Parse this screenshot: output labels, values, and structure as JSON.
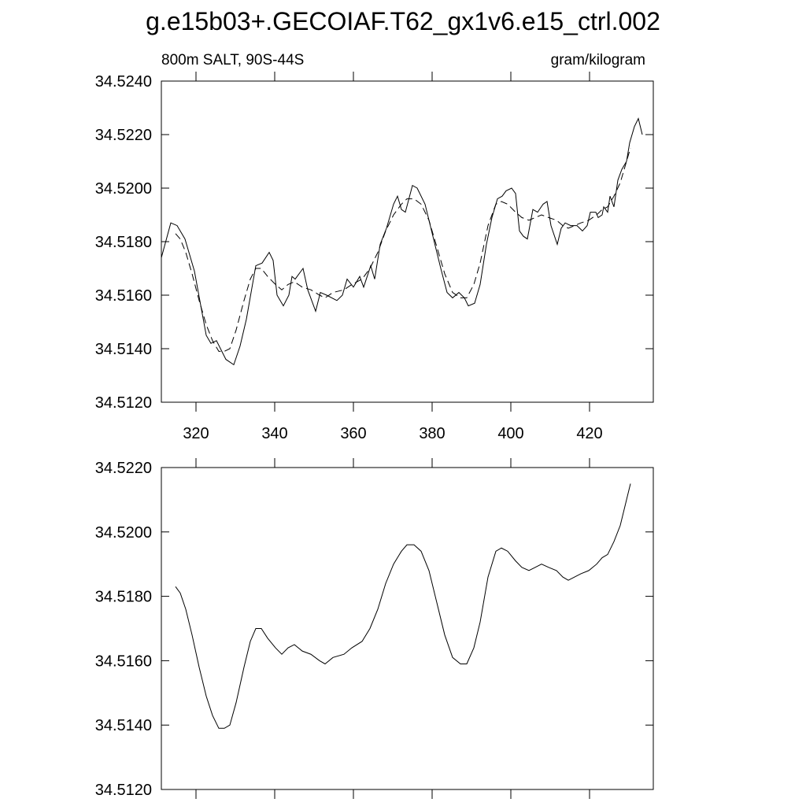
{
  "chart_data": [
    {
      "type": "line",
      "title": "g.e15b03+.GECOIAF.T62_gx1v6.e15_ctrl.002",
      "annotations": [
        "800m SALT, 90S-44S",
        "gram/kilogram"
      ],
      "xlim": [
        311.2,
        436.2
      ],
      "ylim": [
        34.512,
        34.524
      ],
      "xticks": [
        320,
        340,
        360,
        380,
        400,
        420
      ],
      "xtick_labels": true,
      "yticks": [
        {
          "value": 34.512,
          "label": "34.5120"
        },
        {
          "value": 34.514,
          "label": "34.5140"
        },
        {
          "value": 34.516,
          "label": "34.5160"
        },
        {
          "value": 34.518,
          "label": "34.5180"
        },
        {
          "value": 34.52,
          "label": "34.5200"
        },
        {
          "value": 34.522,
          "label": "34.5220"
        },
        {
          "value": 34.524,
          "label": "34.5240"
        }
      ],
      "series": [
        {
          "color": "#000000",
          "dashed": false,
          "x": [
            311.2,
            313.6,
            315.2,
            317.2,
            319.6,
            322.6,
            323.8,
            325.2,
            327.6,
            329.6,
            331.2,
            332.8,
            335.2,
            336.8,
            338.6,
            339.6,
            340.6,
            342.2,
            343.6,
            344.4,
            345.2,
            347.2,
            348.4,
            350.4,
            351.6,
            353.2,
            355.8,
            357.2,
            358.4,
            360,
            361.6,
            362.6,
            364.4,
            365.4,
            366.8,
            368.4,
            370.2,
            371.2,
            372.2,
            373.2,
            375,
            376.2,
            378.2,
            380.2,
            382.2,
            383.8,
            385.2,
            386.8,
            388.2,
            389.2,
            390.8,
            392.2,
            393.8,
            395.2,
            396.6,
            397.8,
            398.8,
            400.2,
            401.2,
            402.2,
            403.2,
            404.2,
            405.6,
            406.8,
            408.2,
            409.2,
            410.2,
            411.8,
            412.8,
            413.8,
            415.2,
            416.8,
            418.2,
            419.4,
            420.2,
            421.6,
            422.2,
            423.2,
            423.6,
            424.6,
            425.2,
            426.2,
            427.2,
            428.2,
            429.4,
            430.2,
            431.4,
            432.4,
            433.4
          ],
          "values": [
            34.5174,
            34.5187,
            34.5186,
            34.5181,
            34.5169,
            34.5145,
            34.5142,
            34.5143,
            34.5136,
            34.5134,
            34.5141,
            34.5151,
            34.5171,
            34.5172,
            34.5176,
            34.5173,
            34.516,
            34.5156,
            34.516,
            34.5167,
            34.5166,
            34.517,
            34.5162,
            34.5154,
            34.5161,
            34.516,
            34.5158,
            34.516,
            34.5166,
            34.5163,
            34.5167,
            34.5163,
            34.5171,
            34.5166,
            34.5179,
            34.5185,
            34.5194,
            34.5197,
            34.5192,
            34.5191,
            34.5201,
            34.52,
            34.5194,
            34.5182,
            34.517,
            34.5161,
            34.5159,
            34.5161,
            34.5159,
            34.5156,
            34.5157,
            34.5164,
            34.5179,
            34.5189,
            34.5196,
            34.5197,
            34.5199,
            34.52,
            34.5198,
            34.5184,
            34.5182,
            34.5181,
            34.5192,
            34.5191,
            34.5194,
            34.5195,
            34.5186,
            34.5179,
            34.5185,
            34.5187,
            34.5186,
            34.5186,
            34.5184,
            34.5186,
            34.5191,
            34.5191,
            34.5189,
            34.519,
            34.5193,
            34.5191,
            34.5197,
            34.5193,
            34.5203,
            34.5207,
            34.521,
            34.5217,
            34.5223,
            34.5226,
            34.522
          ]
        },
        {
          "color": "#000000",
          "dashed": true,
          "x": [
            314.8,
            316,
            317.4,
            319,
            320.8,
            322.6,
            324.2,
            325.8,
            327.2,
            328.6,
            330.2,
            332.2,
            333.8,
            335.2,
            336.6,
            338.2,
            340.2,
            341.8,
            343.4,
            345,
            347,
            349.2,
            351.4,
            352.8,
            354.8,
            357.6,
            359.6,
            362.2,
            364.2,
            366.2,
            368.2,
            370.2,
            372.2,
            373.6,
            375.4,
            377.2,
            379.2,
            381.2,
            383.2,
            385.2,
            387.2,
            388.8,
            390.6,
            392.2,
            394.2,
            396.2,
            397.6,
            399.2,
            401.2,
            402.8,
            404.6,
            406.2,
            407.8,
            409.6,
            411.6,
            413.2,
            414.6,
            416.2,
            417.8,
            419.8,
            421.8,
            423.2,
            424.6,
            426.2,
            427.8,
            429.2,
            430.4
          ],
          "values": [
            34.5183,
            34.5181,
            34.5176,
            34.5168,
            34.5158,
            34.5149,
            34.5143,
            34.5139,
            34.5139,
            34.514,
            34.5147,
            34.5158,
            34.5166,
            34.517,
            34.517,
            34.5167,
            34.5164,
            34.5162,
            34.5164,
            34.5165,
            34.5163,
            34.5162,
            34.516,
            34.5159,
            34.5161,
            34.5162,
            34.5164,
            34.5166,
            34.517,
            34.5176,
            34.5184,
            34.519,
            34.5194,
            34.5196,
            34.5196,
            34.5194,
            34.5188,
            34.5178,
            34.5168,
            34.5161,
            34.5159,
            34.5159,
            34.5164,
            34.5172,
            34.5186,
            34.5194,
            34.5195,
            34.5194,
            34.5191,
            34.5189,
            34.5188,
            34.5189,
            34.519,
            34.5189,
            34.5188,
            34.5186,
            34.5185,
            34.5186,
            34.5187,
            34.5188,
            34.519,
            34.5192,
            34.5193,
            34.5197,
            34.5202,
            34.5209,
            34.5215
          ]
        }
      ]
    },
    {
      "type": "line",
      "xlim": [
        311.2,
        436.2
      ],
      "ylim": [
        34.512,
        34.522
      ],
      "xticks": [
        320,
        340,
        360,
        380,
        400,
        420
      ],
      "xtick_labels": false,
      "yticks": [
        {
          "value": 34.512,
          "label": "34.5120"
        },
        {
          "value": 34.514,
          "label": "34.5140"
        },
        {
          "value": 34.516,
          "label": "34.5160"
        },
        {
          "value": 34.518,
          "label": "34.5180"
        },
        {
          "value": 34.52,
          "label": "34.5200"
        },
        {
          "value": 34.522,
          "label": "34.5220"
        }
      ],
      "series": [
        {
          "color": "#000000",
          "dashed": false,
          "x": [
            314.8,
            316,
            317.4,
            319,
            320.8,
            322.6,
            324.2,
            325.8,
            327.2,
            328.6,
            330.2,
            332.2,
            333.8,
            335.2,
            336.6,
            338.2,
            340.2,
            341.8,
            343.4,
            345,
            347,
            349.2,
            351.4,
            352.8,
            354.8,
            357.6,
            359.6,
            362.2,
            364.2,
            366.2,
            368.2,
            370.2,
            372.2,
            373.6,
            375.4,
            377.2,
            379.2,
            381.2,
            383.2,
            385.2,
            387.2,
            388.8,
            390.6,
            392.2,
            394.2,
            396.2,
            397.6,
            399.2,
            401.2,
            402.8,
            404.6,
            406.2,
            407.8,
            409.6,
            411.6,
            413.2,
            414.6,
            416.2,
            417.8,
            419.8,
            421.8,
            423.2,
            424.6,
            426.2,
            427.8,
            429.2,
            430.4
          ],
          "values": [
            34.5183,
            34.5181,
            34.5176,
            34.5168,
            34.5158,
            34.5149,
            34.5143,
            34.5139,
            34.5139,
            34.514,
            34.5147,
            34.5158,
            34.5166,
            34.517,
            34.517,
            34.5167,
            34.5164,
            34.5162,
            34.5164,
            34.5165,
            34.5163,
            34.5162,
            34.516,
            34.5159,
            34.5161,
            34.5162,
            34.5164,
            34.5166,
            34.517,
            34.5176,
            34.5184,
            34.519,
            34.5194,
            34.5196,
            34.5196,
            34.5194,
            34.5188,
            34.5178,
            34.5168,
            34.5161,
            34.5159,
            34.5159,
            34.5164,
            34.5172,
            34.5186,
            34.5194,
            34.5195,
            34.5194,
            34.5191,
            34.5189,
            34.5188,
            34.5189,
            34.519,
            34.5189,
            34.5188,
            34.5186,
            34.5185,
            34.5186,
            34.5187,
            34.5188,
            34.519,
            34.5192,
            34.5193,
            34.5197,
            34.5202,
            34.5209,
            34.5215
          ]
        }
      ]
    }
  ]
}
